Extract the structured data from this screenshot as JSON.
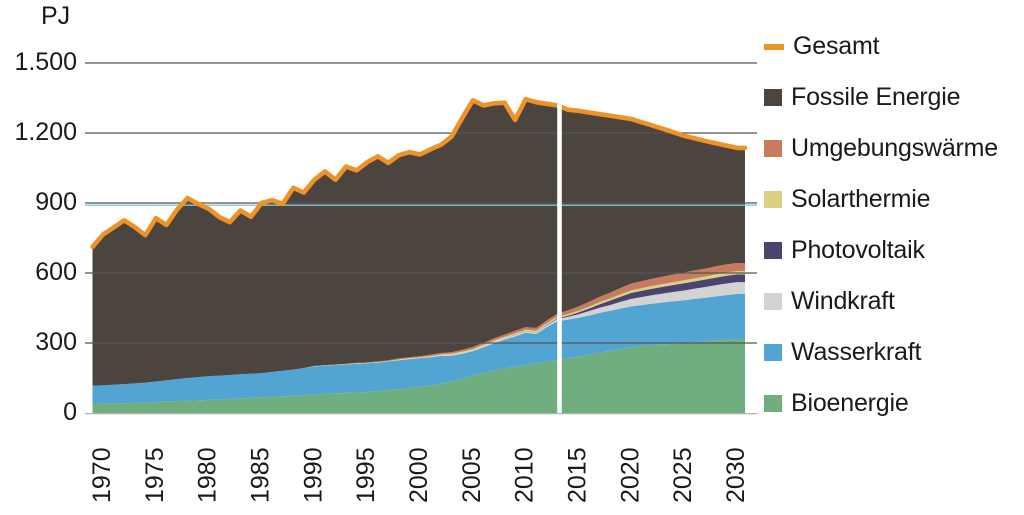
{
  "chart_data": {
    "type": "area",
    "title": "",
    "ylabel": "PJ",
    "ylim": [
      0,
      1500
    ],
    "grid": true,
    "gridline_color": "#555555",
    "accent_gridline_900_color": "#7FC8D9",
    "baseline_color": "#a9a9a9",
    "forecast_divider_year": 2013.2,
    "forecast_divider_color": "#ffffff",
    "legend_position": "right",
    "ytick_values": [
      0,
      300,
      600,
      900,
      1200,
      1500
    ],
    "ytick_labels": [
      "0",
      "300",
      "600",
      "900",
      "1.200",
      "1.500"
    ],
    "xtick_years": [
      1970,
      1975,
      1980,
      1985,
      1990,
      1995,
      2000,
      2005,
      2010,
      2015,
      2020,
      2025,
      2030
    ],
    "xtick_labels": [
      "1970",
      "1975",
      "1980",
      "1985",
      "1990",
      "1995",
      "2000",
      "2005",
      "2010",
      "2015",
      "2020",
      "2025",
      "2030"
    ],
    "years": [
      1969,
      1970,
      1971,
      1972,
      1973,
      1974,
      1975,
      1976,
      1977,
      1978,
      1979,
      1980,
      1981,
      1982,
      1983,
      1984,
      1985,
      1986,
      1987,
      1988,
      1989,
      1990,
      1991,
      1992,
      1993,
      1994,
      1995,
      1996,
      1997,
      1998,
      1999,
      2000,
      2001,
      2002,
      2003,
      2004,
      2005,
      2006,
      2007,
      2008,
      2009,
      2010,
      2011,
      2012,
      2013,
      2014,
      2015,
      2016,
      2017,
      2018,
      2019,
      2020,
      2021,
      2022,
      2023,
      2024,
      2025,
      2026,
      2027,
      2028,
      2029,
      2030
    ],
    "series": [
      {
        "name": "Bioenergie",
        "color": "#70AE80",
        "values": [
          40,
          41,
          41,
          42,
          43,
          44,
          47,
          49,
          51,
          53,
          54,
          56,
          58,
          60,
          63,
          65,
          68,
          70,
          72,
          74,
          77,
          80,
          82,
          84,
          86,
          88,
          90,
          94,
          98,
          102,
          107,
          112,
          118,
          126,
          136,
          148,
          162,
          172,
          182,
          191,
          198,
          206,
          213,
          220,
          227,
          234,
          241,
          250,
          259,
          267,
          275,
          283,
          287,
          291,
          294,
          297,
          300,
          304,
          307,
          311,
          314,
          317
        ]
      },
      {
        "name": "Wasserkraft",
        "color": "#52A5D2",
        "values": [
          77,
          78,
          80,
          82,
          84,
          86,
          88,
          91,
          94,
          97,
          100,
          102,
          102,
          103,
          103,
          103,
          103,
          106,
          109,
          112,
          116,
          120,
          121,
          122,
          122,
          123,
          123,
          122,
          123,
          124,
          124,
          123,
          121,
          119,
          110,
          106,
          103,
          109,
          117,
          124,
          130,
          138,
          126,
          148,
          167,
          166,
          167,
          168,
          170,
          171,
          173,
          174,
          176,
          178,
          180,
          182,
          183,
          185,
          187,
          189,
          191,
          193
        ]
      },
      {
        "name": "Windkraft",
        "color": "#D3D3D3",
        "values": [
          0,
          0,
          0,
          0,
          0,
          0,
          0,
          0,
          0,
          0,
          0,
          0,
          0,
          0,
          0,
          0,
          0,
          0,
          0,
          0,
          0,
          0,
          0,
          0,
          0,
          0,
          0,
          0,
          0,
          1,
          1,
          1,
          2,
          3,
          4,
          5,
          5,
          6,
          6,
          6,
          6,
          6,
          7,
          8,
          9,
          12,
          15,
          19,
          22,
          25,
          29,
          32,
          34,
          36,
          38,
          40,
          42,
          44,
          46,
          48,
          50,
          51
        ]
      },
      {
        "name": "Photovoltaik",
        "color": "#4A4471",
        "values": [
          0,
          0,
          0,
          0,
          0,
          0,
          0,
          0,
          0,
          0,
          0,
          0,
          0,
          0,
          0,
          0,
          0,
          0,
          0,
          0,
          0,
          0,
          0,
          0,
          0,
          0,
          0,
          0,
          0,
          0,
          0,
          0,
          0,
          0,
          0,
          0,
          0,
          0,
          0,
          0,
          1,
          1,
          1,
          2,
          3,
          5,
          8,
          11,
          15,
          19,
          22,
          26,
          27,
          28,
          29,
          30,
          31,
          31,
          32,
          32,
          33,
          33
        ]
      },
      {
        "name": "Solarthermie",
        "color": "#DCD180",
        "values": [
          0,
          0,
          0,
          0,
          0,
          0,
          0,
          0,
          0,
          0,
          0,
          0,
          0,
          0,
          0,
          0,
          0,
          0,
          0,
          0,
          0,
          1,
          1,
          1,
          2,
          2,
          2,
          2,
          2,
          3,
          3,
          3,
          3,
          3,
          4,
          4,
          4,
          5,
          5,
          5,
          6,
          6,
          6,
          7,
          7,
          7,
          8,
          8,
          9,
          9,
          10,
          11,
          11,
          12,
          12,
          12,
          13,
          13,
          13,
          14,
          14,
          14
        ]
      },
      {
        "name": "Umgebungswärme",
        "color": "#C87C5F",
        "values": [
          0,
          0,
          0,
          0,
          0,
          0,
          0,
          0,
          0,
          0,
          0,
          0,
          0,
          0,
          0,
          0,
          0,
          0,
          0,
          0,
          0,
          1,
          1,
          1,
          1,
          2,
          2,
          3,
          3,
          4,
          4,
          5,
          6,
          6,
          7,
          8,
          9,
          9,
          10,
          10,
          11,
          11,
          12,
          12,
          13,
          16,
          18,
          20,
          23,
          25,
          27,
          29,
          30,
          31,
          32,
          33,
          33,
          34,
          34,
          35,
          35,
          35
        ]
      },
      {
        "name": "Fossile Energie",
        "color": "#4C443E",
        "values": [
          595,
          646,
          674,
          702,
          670,
          632,
          700,
          666,
          727,
          771,
          742,
          717,
          680,
          655,
          702,
          673,
          729,
          736,
          715,
          779,
          752,
          798,
          830,
          792,
          845,
          825,
          858,
          879,
          846,
          871,
          879,
          864,
          880,
          893,
          924,
          994,
          1057,
          1017,
          1007,
          994,
          904,
          977,
          967,
          928,
          892,
          860,
          838,
          812,
          783,
          758,
          731,
          705,
          681,
          656,
          633,
          609,
          586,
          566,
          547,
          527,
          509,
          493
        ]
      }
    ],
    "total_line": {
      "name": "Gesamt",
      "color": "#F09327"
    }
  },
  "legend": {
    "items": [
      {
        "label": "Gesamt",
        "color": "#F09327",
        "swatch": "line"
      },
      {
        "label": "Fossile Energie",
        "color": "#4C443E",
        "swatch": "square"
      },
      {
        "label": "Umgebungswärme",
        "color": "#C87C5F",
        "swatch": "square"
      },
      {
        "label": "Solarthermie",
        "color": "#DCD180",
        "swatch": "square"
      },
      {
        "label": "Photovoltaik",
        "color": "#4A4471",
        "swatch": "square"
      },
      {
        "label": "Windkraft",
        "color": "#D3D3D3",
        "swatch": "square"
      },
      {
        "label": "Wasserkraft",
        "color": "#52A5D2",
        "swatch": "square"
      },
      {
        "label": "Bioenergie",
        "color": "#70AE80",
        "swatch": "square"
      }
    ]
  }
}
